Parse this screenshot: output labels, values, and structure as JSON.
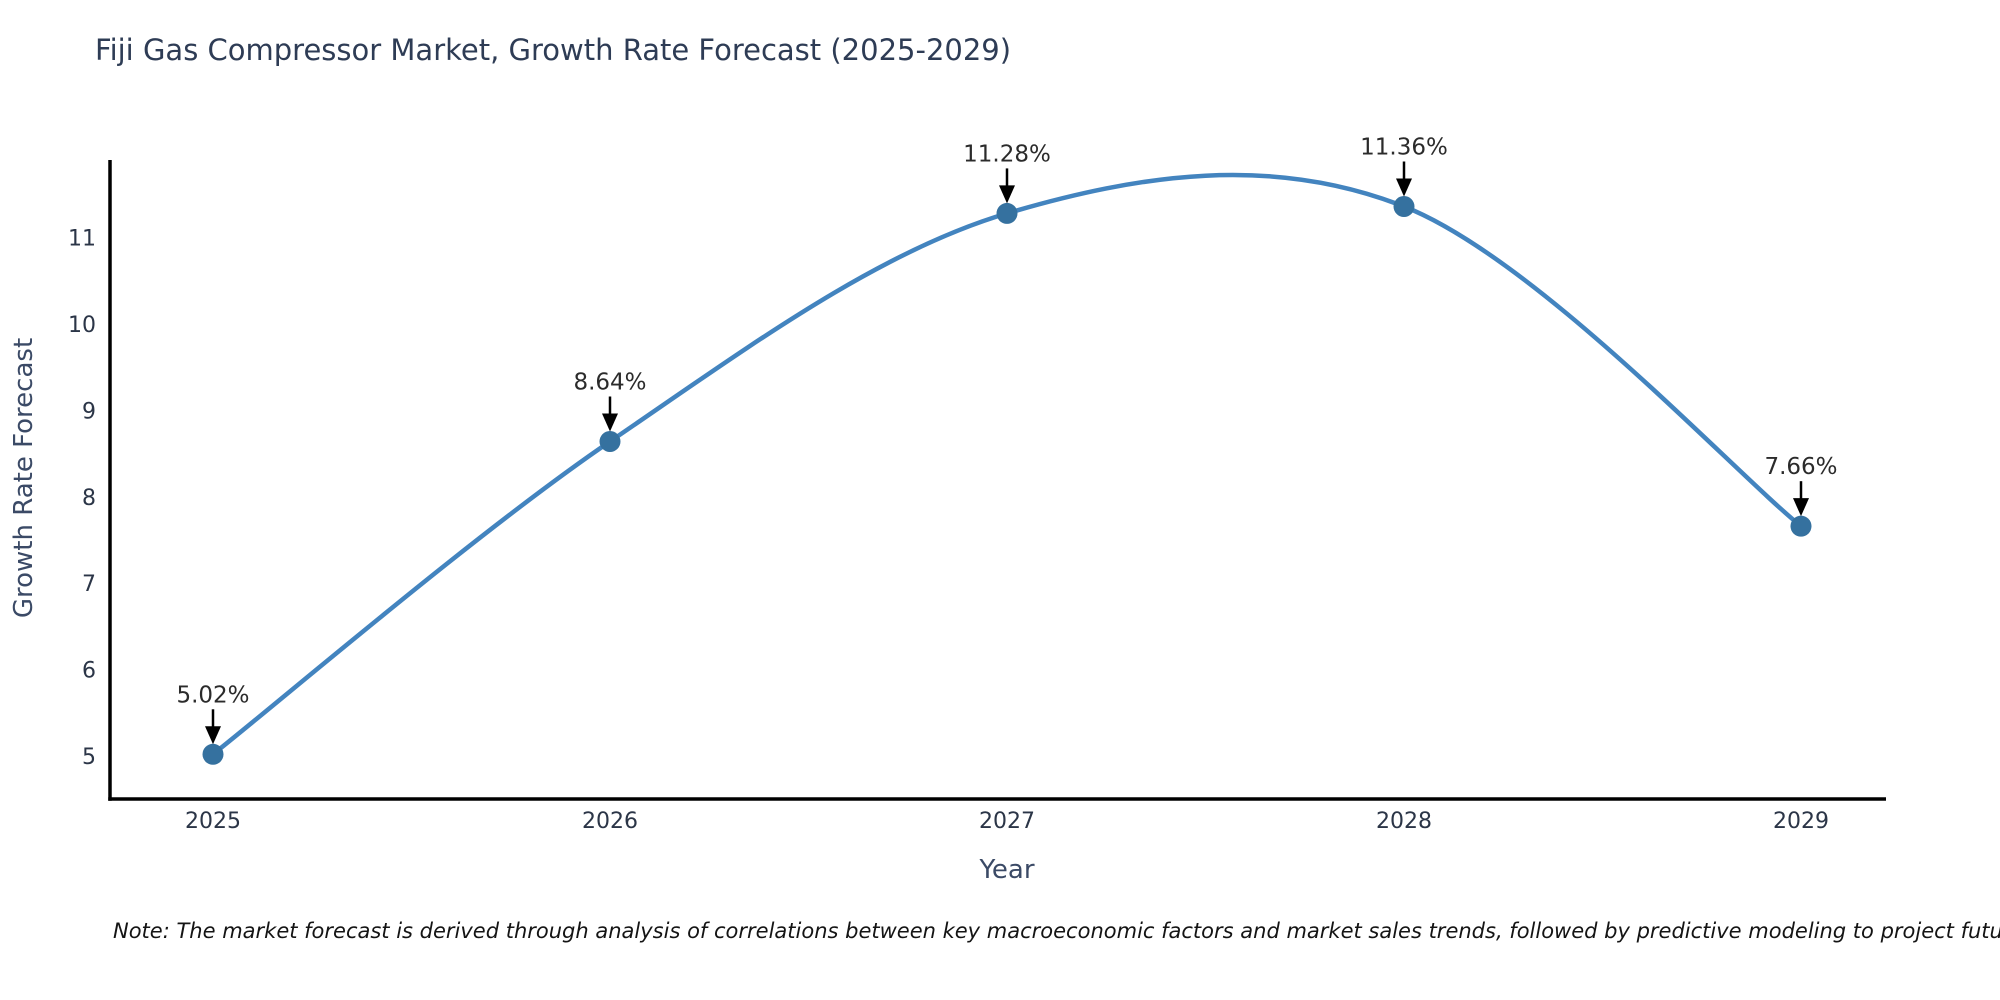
{
  "note": "Note: The market forecast is derived through analysis of correlations between key macroeconomic factors and market sales trends, followed by predictive modeling to project future sales",
  "chart_data": {
    "type": "line",
    "title": "Fiji Gas Compressor Market, Growth Rate Forecast (2025-2029)",
    "xlabel": "Year",
    "ylabel": "Growth Rate Forecast",
    "categories": [
      "2025",
      "2026",
      "2027",
      "2028",
      "2029"
    ],
    "values": [
      5.02,
      8.64,
      11.28,
      11.36,
      7.66
    ],
    "point_labels": [
      "5.02%",
      "8.64%",
      "11.28%",
      "11.36%",
      "7.66%"
    ],
    "yticks": [
      "5",
      "6",
      "7",
      "8",
      "9",
      "10",
      "11"
    ],
    "ylim": [
      4.5,
      11.9
    ],
    "grid": false,
    "legend_position": "none",
    "line_shape": "spline",
    "colors": {
      "line": "#4384bf",
      "marker": "#35719f",
      "axis": "#000000",
      "title_text": "#2e3c55",
      "axis_label_text": "#3b4a66",
      "tick_text": "#2b3547",
      "annotation_text": "#2b2b2b",
      "annotation_arrow": "#000000",
      "background": "#ffffff"
    }
  }
}
